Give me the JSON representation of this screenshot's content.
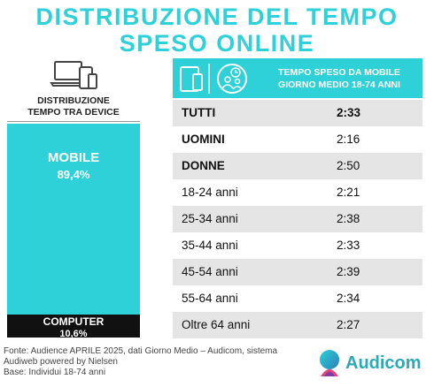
{
  "title": {
    "line1": "DISTRIBUZIONE DEL TEMPO",
    "line2": "SPESO ONLINE"
  },
  "left_panel": {
    "subtitle_line1": "DISTRIBUZIONE",
    "subtitle_line2": "TEMPO TRA DEVICE",
    "icon": "devices-icon"
  },
  "right_panel": {
    "banner_line1": "TEMPO SPESO DA MOBILE",
    "banner_line2": "GIORNO MEDIO 18-74 ANNI",
    "icons": [
      "devices-icon",
      "clock-people-icon"
    ]
  },
  "chart_data": [
    {
      "type": "bar",
      "stacked": true,
      "categories": [
        "MOBILE",
        "COMPUTER"
      ],
      "values": [
        89.4,
        10.6
      ],
      "value_labels": [
        "89,4%",
        "10,6%"
      ],
      "colors": [
        "#2ed1d8",
        "#111111"
      ]
    },
    {
      "type": "table",
      "rows": [
        {
          "label": "TUTTI",
          "value": "2:33",
          "bold_label": true,
          "bold_value": true
        },
        {
          "label": "UOMINI",
          "value": "2:16",
          "bold_label": true,
          "bold_value": false
        },
        {
          "label": "DONNE",
          "value": "2:50",
          "bold_label": true,
          "bold_value": false
        },
        {
          "label": "18-24 anni",
          "value": "2:21",
          "bold_label": false,
          "bold_value": false
        },
        {
          "label": "25-34 anni",
          "value": "2:38",
          "bold_label": false,
          "bold_value": false
        },
        {
          "label": "35-44 anni",
          "value": "2:33",
          "bold_label": false,
          "bold_value": false
        },
        {
          "label": "45-54 anni",
          "value": "2:39",
          "bold_label": false,
          "bold_value": false
        },
        {
          "label": "55-64 anni",
          "value": "2:34",
          "bold_label": false,
          "bold_value": false
        },
        {
          "label": "Oltre 64 anni",
          "value": "2:27",
          "bold_label": false,
          "bold_value": false
        }
      ]
    }
  ],
  "footnote": {
    "line1": "Fonte: Audience APRILE 2025, dati Giorno Medio – Audicom, sistema",
    "line2": "Audiweb powered by Nielsen",
    "line3": "Base:  Individui 18-74 anni"
  },
  "brand": {
    "name": "Audicom",
    "logo": "audicom-logo",
    "color": "#2ba9b6"
  },
  "colors": {
    "accent": "#2ed1d8",
    "dark": "#111111",
    "row_shade": "#e5e5e5"
  }
}
